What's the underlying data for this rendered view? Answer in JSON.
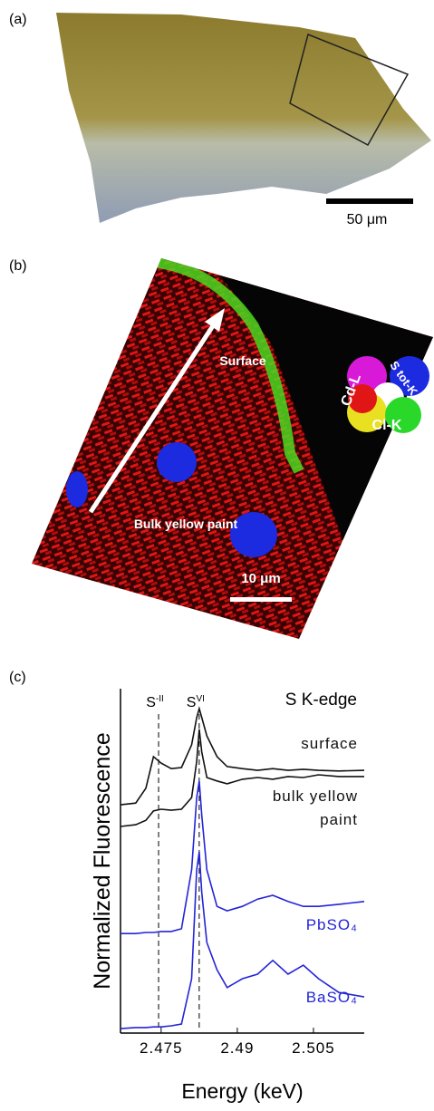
{
  "panel_a": {
    "label": "(a)",
    "scale_bar": "50 μm"
  },
  "panel_b": {
    "label": "(b)",
    "surface": "Surface",
    "bulk": "Bulk yellow paint",
    "scale_bar": "10 μm",
    "legend": [
      "Cd-L",
      "S tot-K",
      "Cl-K"
    ]
  },
  "panel_c_label": "(c)",
  "chart_data": {
    "type": "line",
    "title": "S K-edge",
    "x_label": "Energy (keV)",
    "y_label": "Normalized Fluorescence",
    "x": [
      2.467,
      2.47,
      2.472,
      2.4735,
      2.475,
      2.477,
      2.479,
      2.481,
      2.482,
      2.4825,
      2.483,
      2.484,
      2.486,
      2.488,
      2.491,
      2.494,
      2.497,
      2.5,
      2.503,
      2.506,
      2.51,
      2.515
    ],
    "series": [
      {
        "name": "surface",
        "color": "#111111",
        "values": [
          6.63,
          6.68,
          7.11,
          8.03,
          7.84,
          7.68,
          7.71,
          8.37,
          9.16,
          9.42,
          9.16,
          8.63,
          8.03,
          7.74,
          7.68,
          7.63,
          7.68,
          7.63,
          7.66,
          7.63,
          7.61,
          7.63
        ]
      },
      {
        "name": "bulk yellow paint",
        "color": "#111111",
        "values": [
          6.0,
          6.05,
          6.18,
          6.45,
          6.5,
          6.47,
          6.5,
          6.84,
          7.89,
          8.82,
          8.16,
          7.42,
          7.32,
          7.24,
          7.37,
          7.42,
          7.37,
          7.45,
          7.42,
          7.5,
          7.45,
          7.45
        ]
      },
      {
        "name": "PbSO₄",
        "color": "#2424d8",
        "values": [
          2.89,
          2.89,
          2.92,
          2.92,
          2.95,
          2.95,
          3.03,
          4.74,
          6.84,
          7.32,
          6.32,
          4.74,
          3.68,
          3.55,
          3.68,
          3.89,
          4.0,
          3.82,
          3.68,
          3.68,
          3.74,
          3.82
        ]
      },
      {
        "name": "BaSO₄",
        "color": "#2424d8",
        "values": [
          0.13,
          0.16,
          0.16,
          0.18,
          0.18,
          0.21,
          0.26,
          1.58,
          4.74,
          5.26,
          4.08,
          2.63,
          1.84,
          1.32,
          1.58,
          1.71,
          2.11,
          1.71,
          1.97,
          1.58,
          1.18,
          1.05
        ]
      }
    ],
    "markers": [
      {
        "label": "S",
        "sup": "-II",
        "x": 2.4745
      },
      {
        "label": "S",
        "sup": "VI",
        "x": 2.4825
      }
    ],
    "xlim": [
      2.467,
      2.515
    ],
    "xticks": [
      2.475,
      2.49,
      2.505
    ],
    "ylim": [
      0,
      10
    ]
  }
}
